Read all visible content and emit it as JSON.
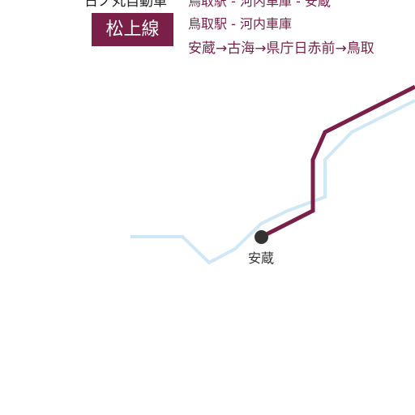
{
  "operator": {
    "name": "日ノ丸自動車"
  },
  "route": {
    "name": "松上線",
    "color": "#7a1f47",
    "other_line_color": "#cfe8f6",
    "top_segment": "鳥取駅 - 河内車庫 - 安蔵",
    "middle_segment": "鳥取駅 - 河内車庫",
    "stops_segment": "安蔵→古海→県庁日赤前→鳥取"
  },
  "stop": {
    "name": "安蔵",
    "dot_color": "#333333"
  }
}
